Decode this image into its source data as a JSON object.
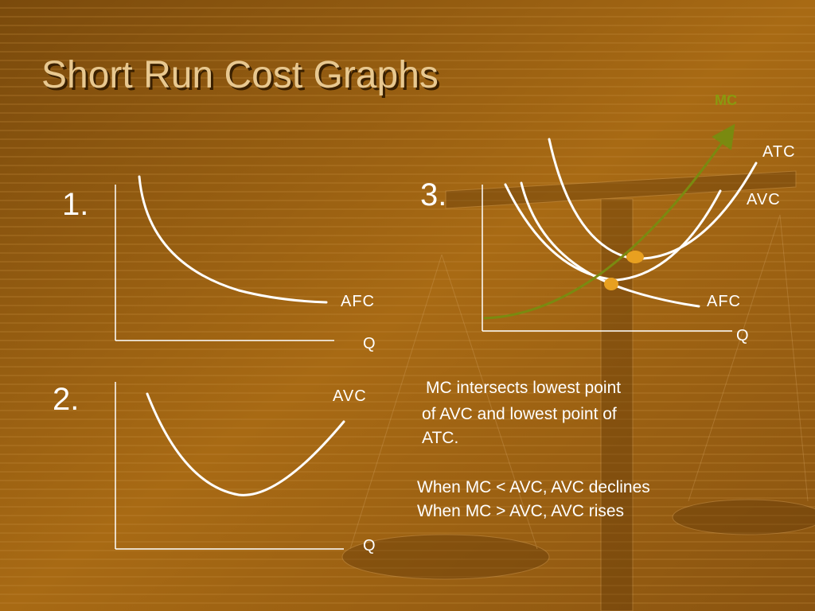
{
  "title": "Short Run Cost Graphs",
  "graphs": [
    {
      "number": "1.",
      "labels": [
        "AFC",
        "Q"
      ]
    },
    {
      "number": "2.",
      "labels": [
        "AVC",
        "Q"
      ]
    },
    {
      "number": "3.",
      "labels": [
        "MC",
        "ATC",
        "AVC",
        "AFC",
        "Q"
      ]
    }
  ],
  "notes": [
    "MC intersects lowest point",
    "of AVC and lowest point of",
    "ATC.",
    "When MC < AVC, AVC declines",
    "When MC > AVC, AVC rises"
  ]
}
